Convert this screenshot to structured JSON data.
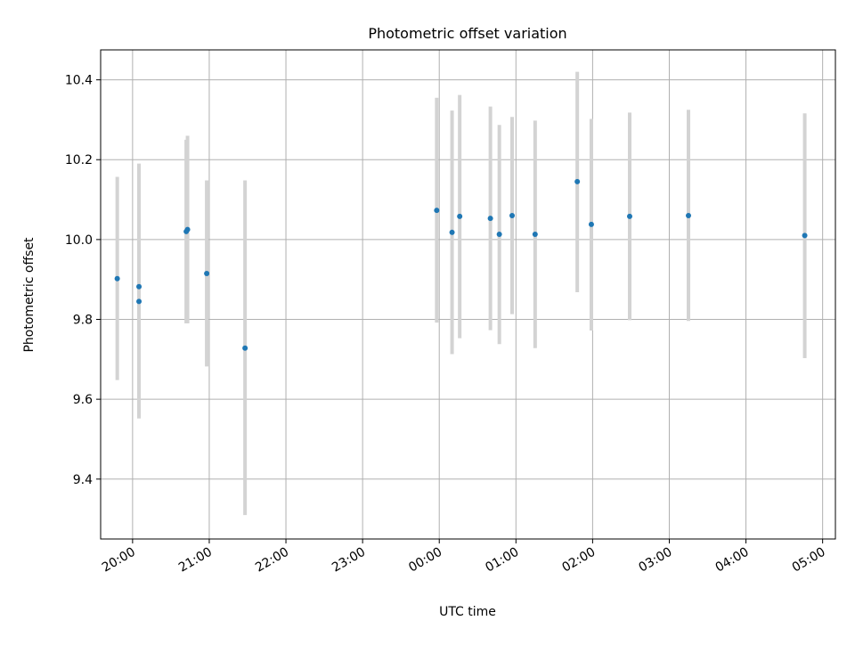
{
  "chart_data": {
    "type": "scatter",
    "title": "Photometric offset variation",
    "xlabel": "UTC time",
    "ylabel": "Photometric offset",
    "x_axis": {
      "kind": "time",
      "start_time": "19:35",
      "end_time": "05:10",
      "tick_labels": [
        "20:00",
        "21:00",
        "22:00",
        "23:00",
        "00:00",
        "01:00",
        "02:00",
        "03:00",
        "04:00",
        "05:00"
      ]
    },
    "y_axis": {
      "ylim": [
        9.25,
        10.475
      ],
      "ticks": [
        9.4,
        9.6,
        9.8,
        10.0,
        10.2,
        10.4
      ],
      "tick_labels": [
        "9.4",
        "9.6",
        "9.8",
        "10.0",
        "10.2",
        "10.4"
      ]
    },
    "grid": true,
    "marker_color": "#1f77b4",
    "errorbar_color": "#d3d3d3",
    "points": [
      {
        "time": "19:48",
        "y": 9.902,
        "ylow": 9.648,
        "yhigh": 10.157
      },
      {
        "time": "20:05",
        "y": 9.882,
        "ylow": 9.552,
        "yhigh": 10.19
      },
      {
        "time": "20:05",
        "y": 9.845,
        "ylow": 9.552,
        "yhigh": 10.19
      },
      {
        "time": "20:42",
        "y": 10.02,
        "ylow": 9.79,
        "yhigh": 10.25
      },
      {
        "time": "20:43",
        "y": 10.025,
        "ylow": 9.79,
        "yhigh": 10.26
      },
      {
        "time": "20:58",
        "y": 9.915,
        "ylow": 9.682,
        "yhigh": 10.148
      },
      {
        "time": "21:28",
        "y": 9.728,
        "ylow": 9.31,
        "yhigh": 10.148
      },
      {
        "time": "23:58",
        "y": 10.073,
        "ylow": 9.792,
        "yhigh": 10.355
      },
      {
        "time": "00:10",
        "y": 10.018,
        "ylow": 9.713,
        "yhigh": 10.323
      },
      {
        "time": "00:16",
        "y": 10.058,
        "ylow": 9.753,
        "yhigh": 10.362
      },
      {
        "time": "00:40",
        "y": 10.053,
        "ylow": 9.773,
        "yhigh": 10.333
      },
      {
        "time": "00:47",
        "y": 10.013,
        "ylow": 9.738,
        "yhigh": 10.287
      },
      {
        "time": "00:57",
        "y": 10.06,
        "ylow": 9.813,
        "yhigh": 10.307
      },
      {
        "time": "01:15",
        "y": 10.013,
        "ylow": 9.728,
        "yhigh": 10.298
      },
      {
        "time": "01:48",
        "y": 10.145,
        "ylow": 9.868,
        "yhigh": 10.42
      },
      {
        "time": "01:59",
        "y": 10.038,
        "ylow": 9.772,
        "yhigh": 10.302
      },
      {
        "time": "02:29",
        "y": 10.058,
        "ylow": 9.798,
        "yhigh": 10.318
      },
      {
        "time": "03:15",
        "y": 10.06,
        "ylow": 9.796,
        "yhigh": 10.325
      },
      {
        "time": "04:46",
        "y": 10.01,
        "ylow": 9.703,
        "yhigh": 10.316
      }
    ]
  }
}
